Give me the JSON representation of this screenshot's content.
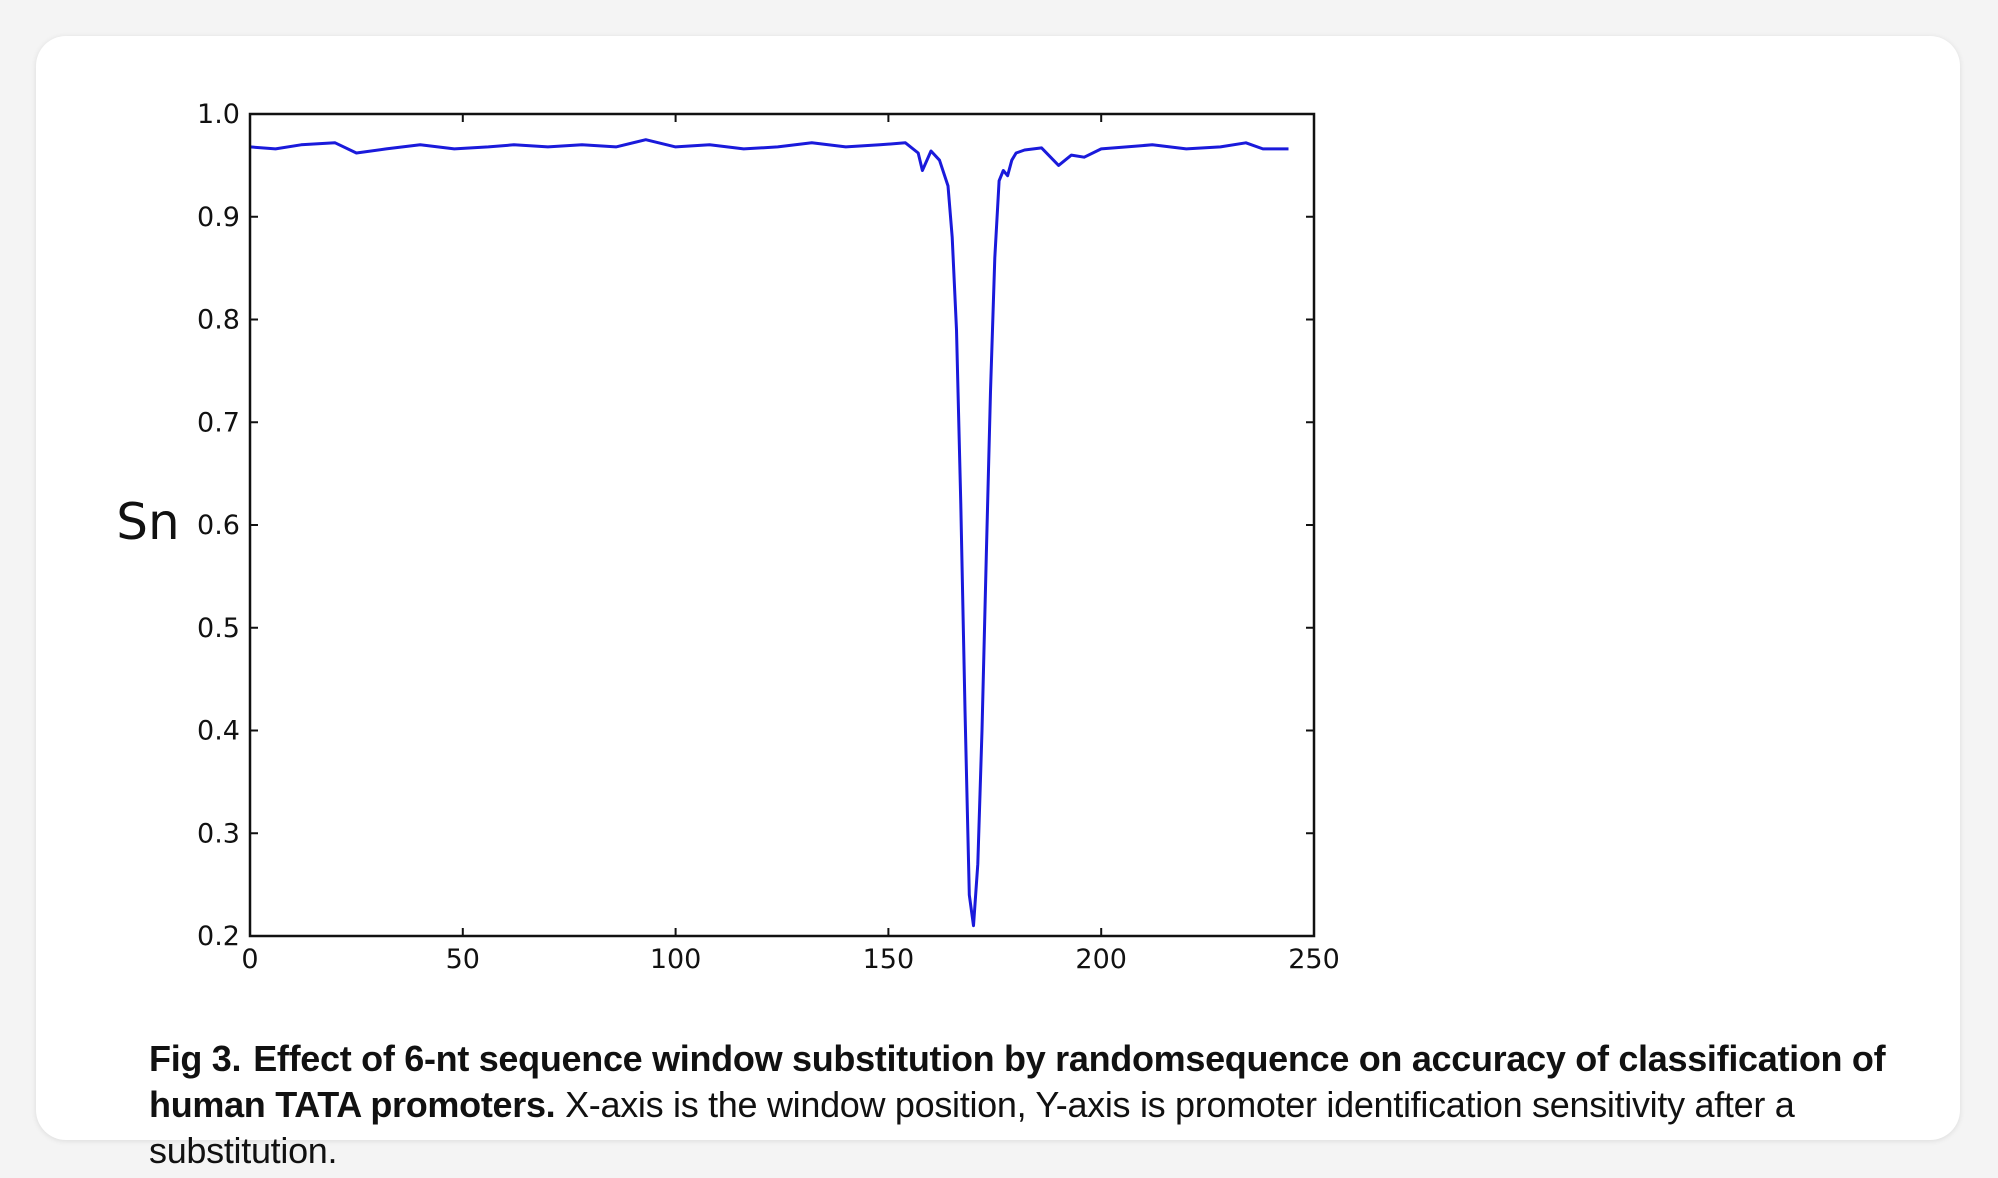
{
  "chart_data": {
    "type": "line",
    "title": "",
    "xlabel": "",
    "ylabel": "Sn",
    "xlim": [
      0,
      250
    ],
    "ylim": [
      0.2,
      1.0
    ],
    "xticks": [
      0,
      50,
      100,
      150,
      200,
      250
    ],
    "yticks": [
      0.2,
      0.3,
      0.4,
      0.5,
      0.6,
      0.7,
      0.8,
      0.9,
      1.0
    ],
    "xtick_labels": [
      "0",
      "50",
      "100",
      "150",
      "200",
      "250"
    ],
    "ytick_labels": [
      "0.2",
      "0.3",
      "0.4",
      "0.5",
      "0.6",
      "0.7",
      "0.8",
      "0.9",
      "1.0"
    ],
    "grid": false,
    "line_color": "#1a1adb",
    "series": [
      {
        "name": "",
        "x": [
          0,
          6,
          12,
          20,
          25,
          32,
          40,
          48,
          56,
          62,
          70,
          78,
          86,
          93,
          100,
          108,
          116,
          124,
          132,
          140,
          148,
          154,
          157,
          158,
          160,
          162,
          164,
          165,
          166,
          167,
          168,
          169,
          170,
          171,
          172,
          173,
          174,
          175,
          176,
          177,
          178,
          179,
          180,
          182,
          186,
          190,
          193,
          196,
          200,
          206,
          212,
          220,
          228,
          234,
          238,
          244
        ],
        "y": [
          0.968,
          0.966,
          0.97,
          0.972,
          0.962,
          0.966,
          0.97,
          0.966,
          0.968,
          0.97,
          0.968,
          0.97,
          0.968,
          0.975,
          0.968,
          0.97,
          0.966,
          0.968,
          0.972,
          0.968,
          0.97,
          0.972,
          0.962,
          0.945,
          0.964,
          0.955,
          0.93,
          0.88,
          0.79,
          0.62,
          0.42,
          0.24,
          0.21,
          0.27,
          0.4,
          0.57,
          0.73,
          0.86,
          0.935,
          0.945,
          0.94,
          0.955,
          0.962,
          0.965,
          0.967,
          0.95,
          0.96,
          0.958,
          0.966,
          0.968,
          0.97,
          0.966,
          0.968,
          0.972,
          0.966,
          0.966
        ]
      }
    ]
  },
  "caption": {
    "fig_number": "Fig 3.",
    "title": "Effect of 6-nt sequence window substitution by randomsequence on accuracy of classification of human TATA promoters.",
    "text": " X-axis is the window position, Y-axis is promoter identification sensitivity after a substitution."
  }
}
